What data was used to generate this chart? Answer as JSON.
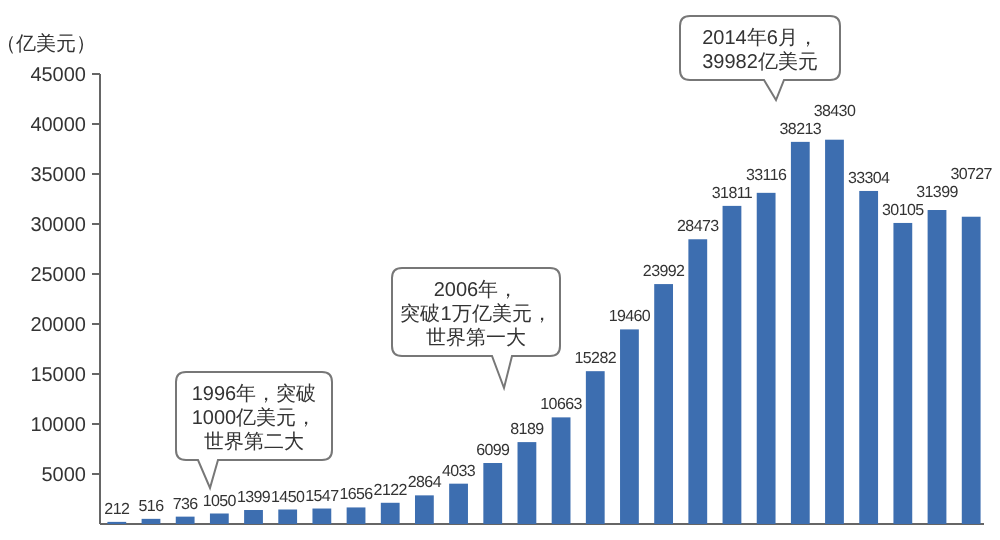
{
  "chart_data": {
    "type": "bar",
    "ylabel": "（亿美元）",
    "categories": [
      null,
      null,
      null,
      null,
      null,
      null,
      null,
      null,
      null,
      null,
      null,
      null,
      null,
      null,
      null,
      null,
      null,
      null,
      null,
      null,
      null,
      null,
      null,
      null,
      null,
      null
    ],
    "values": [
      212,
      516,
      736,
      1050,
      1399,
      1450,
      1547,
      1656,
      2122,
      2864,
      4033,
      6099,
      8189,
      10663,
      15282,
      19460,
      23992,
      28473,
      31811,
      33116,
      38213,
      38430,
      33304,
      30105,
      31399,
      30727
    ],
    "color": "#3d6eb0",
    "ylim": [
      0,
      45000
    ],
    "yticks": [
      5000,
      10000,
      15000,
      20000,
      25000,
      30000,
      35000,
      40000,
      45000
    ],
    "data_labels": true,
    "tick_labels": "y",
    "annotations": [
      "1996年，突破1000亿美元，世界第二大",
      "2006年，突破1万亿美元，世界第一大",
      "2014年6月，39982亿美元"
    ]
  }
}
